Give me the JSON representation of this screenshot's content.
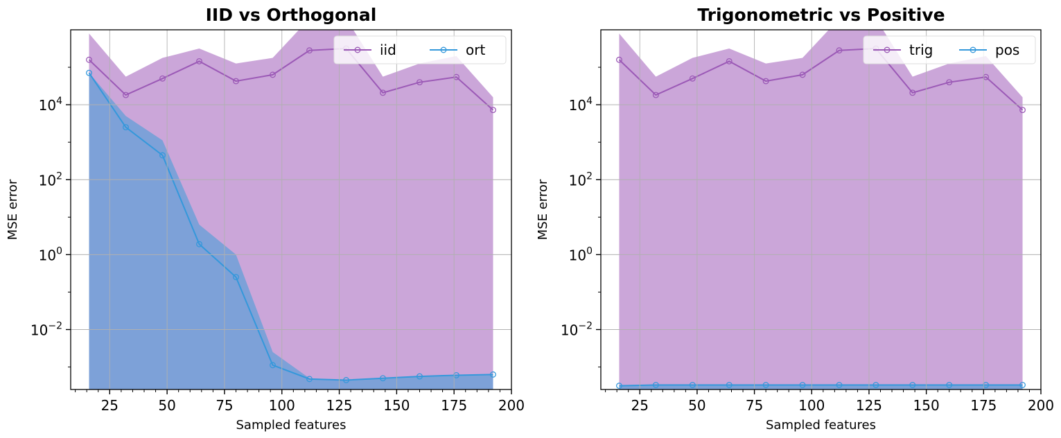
{
  "chart_data": [
    {
      "type": "line",
      "title": "IID vs Orthogonal",
      "xlabel": "Sampled features",
      "ylabel": "MSE error",
      "x": [
        16,
        32,
        48,
        64,
        80,
        96,
        112,
        128,
        144,
        160,
        176,
        192
      ],
      "xlim": [
        8,
        200
      ],
      "xticks": [
        25,
        50,
        75,
        100,
        125,
        150,
        175,
        200
      ],
      "yscale": "log",
      "ylim_log10": [
        -3.6,
        6.0
      ],
      "yticks": [
        {
          "base": "10",
          "exp": "4",
          "log": 4
        },
        {
          "base": "10",
          "exp": "2",
          "log": 2
        },
        {
          "base": "10",
          "exp": "0",
          "log": 0
        },
        {
          "base": "10",
          "exp": "−2",
          "log": -2
        }
      ],
      "grid": true,
      "legend": "top-right",
      "series": [
        {
          "name": "iid",
          "color": "#9b59b6",
          "band_color": "#cba6d9",
          "log10_values": [
            5.2,
            4.26,
            4.7,
            5.16,
            4.63,
            4.8,
            5.45,
            5.5,
            4.32,
            4.6,
            4.74,
            3.86
          ],
          "band_upper_log10": [
            5.9,
            4.75,
            5.25,
            5.5,
            5.1,
            5.25,
            6.3,
            6.3,
            4.75,
            5.1,
            5.3,
            4.2
          ]
        },
        {
          "name": "ort",
          "color": "#3498db",
          "band_color": "#7da1d8",
          "log10_values": [
            4.85,
            3.4,
            2.65,
            0.28,
            -0.6,
            -2.95,
            -3.32,
            -3.35,
            -3.3,
            -3.25,
            -3.22,
            -3.2
          ],
          "band_upper_log10": [
            4.85,
            3.7,
            3.05,
            0.8,
            0.0,
            -2.6,
            -3.3,
            -3.35,
            -3.3,
            -3.25,
            -3.22,
            -3.2
          ]
        }
      ]
    },
    {
      "type": "line",
      "title": "Trigonometric vs Positive",
      "xlabel": "Sampled features",
      "ylabel": "MSE error",
      "x": [
        16,
        32,
        48,
        64,
        80,
        96,
        112,
        128,
        144,
        160,
        176,
        192
      ],
      "xlim": [
        8,
        200
      ],
      "xticks": [
        25,
        50,
        75,
        100,
        125,
        150,
        175,
        200
      ],
      "yscale": "log",
      "ylim_log10": [
        -3.6,
        6.0
      ],
      "yticks": [
        {
          "base": "10",
          "exp": "4",
          "log": 4
        },
        {
          "base": "10",
          "exp": "2",
          "log": 2
        },
        {
          "base": "10",
          "exp": "0",
          "log": 0
        },
        {
          "base": "10",
          "exp": "−2",
          "log": -2
        }
      ],
      "grid": true,
      "legend": "top-right",
      "series": [
        {
          "name": "trig",
          "color": "#9b59b6",
          "band_color": "#cba6d9",
          "log10_values": [
            5.2,
            4.26,
            4.7,
            5.16,
            4.63,
            4.8,
            5.45,
            5.5,
            4.32,
            4.6,
            4.74,
            3.86
          ],
          "band_upper_log10": [
            5.9,
            4.75,
            5.25,
            5.5,
            5.1,
            5.25,
            6.3,
            6.3,
            4.75,
            5.1,
            5.3,
            4.2
          ]
        },
        {
          "name": "pos",
          "color": "#3498db",
          "band_color": "#7da1d8",
          "log10_values": [
            -3.5,
            -3.48,
            -3.48,
            -3.48,
            -3.48,
            -3.48,
            -3.48,
            -3.48,
            -3.48,
            -3.48,
            -3.48,
            -3.48
          ],
          "band_upper_log10": [
            -3.5,
            -3.48,
            -3.48,
            -3.48,
            -3.48,
            -3.48,
            -3.48,
            -3.48,
            -3.48,
            -3.48,
            -3.48,
            -3.48
          ]
        }
      ]
    }
  ]
}
